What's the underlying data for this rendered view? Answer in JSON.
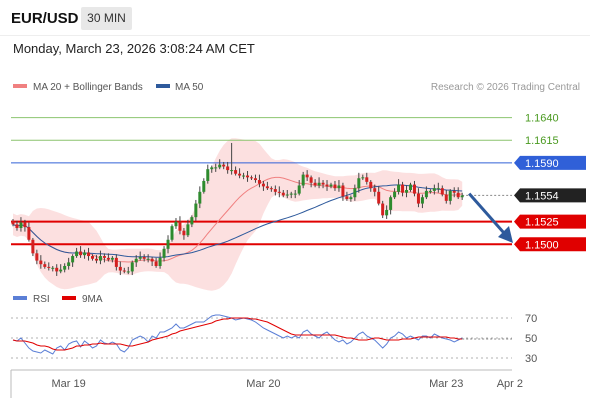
{
  "header": {
    "symbol": "EUR/USD",
    "timeframe": "30 MIN",
    "datetime": "Monday, March 23, 2026 3:08:24 AM CET"
  },
  "legend": {
    "ma20": {
      "label": "MA 20 + Bollinger Bands",
      "color": "#f08080"
    },
    "ma50": {
      "label": "MA 50",
      "color": "#2e5a9c"
    }
  },
  "copyright": "Research © 2026 Trading Central",
  "rsi_legend": {
    "rsi": {
      "label": "RSI",
      "color": "#5b7fd6"
    },
    "ma9": {
      "label": "9MA",
      "color": "#e00000"
    }
  },
  "colors": {
    "bull": "#2e8b2e",
    "bear": "#d42020",
    "resistance": "#8cc46f",
    "pivot": "#3060d8",
    "support": "#e00000",
    "band_fill": "#fbdada",
    "arrow": "#2e5a9c"
  },
  "chart_data": [
    {
      "type": "candlestick",
      "ylim": [
        1.1455,
        1.1665
      ],
      "x_ticks": [
        {
          "label": "Mar 19",
          "bar": 14
        },
        {
          "label": "Mar 20",
          "bar": 63
        },
        {
          "label": "Mar 23",
          "bar": 109
        },
        {
          "label": "Apr 2",
          "bar": 125
        }
      ],
      "levels": [
        {
          "label": "1.1640",
          "value": 1.164,
          "kind": "resistance"
        },
        {
          "label": "1.1615",
          "value": 1.1615,
          "kind": "resistance"
        },
        {
          "label": "1.1590",
          "value": 1.159,
          "kind": "pivot"
        },
        {
          "label": "1.1554",
          "value": 1.1554,
          "kind": "last"
        },
        {
          "label": "1.1525",
          "value": 1.1525,
          "kind": "support"
        },
        {
          "label": "1.1500",
          "value": 1.15,
          "kind": "support"
        }
      ],
      "close": [
        1.1522,
        1.1518,
        1.1524,
        1.1519,
        1.1505,
        1.149,
        1.1482,
        1.1478,
        1.1475,
        1.1474,
        1.1474,
        1.147,
        1.1472,
        1.1476,
        1.148,
        1.1487,
        1.1492,
        1.1488,
        1.1491,
        1.1487,
        1.1484,
        1.1482,
        1.1487,
        1.1485,
        1.1483,
        1.1485,
        1.1475,
        1.1471,
        1.147,
        1.147,
        1.148,
        1.1484,
        1.1486,
        1.1484,
        1.1484,
        1.1481,
        1.1476,
        1.1485,
        1.1495,
        1.1505,
        1.152,
        1.1525,
        1.1515,
        1.151,
        1.1522,
        1.153,
        1.1545,
        1.1558,
        1.157,
        1.1583,
        1.1585,
        1.1585,
        1.1588,
        1.1586,
        1.1582,
        1.1582,
        1.1578,
        1.1576,
        1.1576,
        1.1574,
        1.1573,
        1.1571,
        1.1567,
        1.1564,
        1.1562,
        1.1561,
        1.1558,
        1.1557,
        1.1554,
        1.1555,
        1.1556,
        1.1556,
        1.1565,
        1.1577,
        1.1574,
        1.1568,
        1.1565,
        1.1568,
        1.1566,
        1.1564,
        1.1566,
        1.1562,
        1.1565,
        1.1553,
        1.155,
        1.1552,
        1.1562,
        1.1573,
        1.1574,
        1.1569,
        1.1562,
        1.1558,
        1.1545,
        1.1532,
        1.1538,
        1.1552,
        1.1558,
        1.1566,
        1.1557,
        1.156,
        1.1566,
        1.1556,
        1.1545,
        1.1552,
        1.1559,
        1.1559,
        1.1562,
        1.1562,
        1.1555,
        1.1548,
        1.1559,
        1.1557,
        1.1552,
        1.1554
      ],
      "rsi_ylim": [
        20,
        80
      ],
      "rsi_ticks": [
        70,
        50,
        30
      ],
      "rsi": [
        48,
        47,
        50,
        45,
        40,
        37,
        36,
        35,
        38,
        36,
        34,
        40,
        42,
        38,
        44,
        46,
        47,
        41,
        47,
        44,
        40,
        42,
        48,
        45,
        44,
        46,
        44,
        38,
        36,
        40,
        48,
        50,
        52,
        50,
        46,
        52,
        50,
        56,
        56,
        58,
        60,
        64,
        60,
        60,
        62,
        64,
        66,
        66,
        66,
        69,
        72,
        73,
        73,
        72,
        71,
        70,
        68,
        69,
        70,
        69,
        68,
        66,
        63,
        60,
        58,
        56,
        54,
        52,
        50,
        52,
        50,
        52,
        50,
        56,
        58,
        54,
        52,
        50,
        54,
        56,
        52,
        48,
        46,
        48,
        44,
        46,
        50,
        54,
        56,
        52,
        50,
        48,
        44,
        40,
        44,
        50,
        52,
        56,
        54,
        50,
        52,
        50,
        48,
        52,
        52,
        50,
        54,
        52,
        50,
        49,
        48,
        46,
        48,
        50
      ],
      "rsi_ma9": [
        48,
        47,
        47,
        47,
        46,
        45,
        43,
        42,
        42,
        41,
        39,
        38,
        38,
        38,
        39,
        40,
        42,
        42,
        43,
        43,
        44,
        44,
        45,
        44,
        44,
        44,
        44,
        44,
        43,
        42,
        42,
        43,
        44,
        45,
        46,
        48,
        49,
        50,
        51,
        52,
        54,
        55,
        57,
        58,
        59,
        60,
        61,
        62,
        63,
        64,
        65,
        67,
        68,
        69,
        69,
        70,
        70,
        70,
        70,
        70,
        69,
        69,
        68,
        67,
        66,
        64,
        62,
        60,
        58,
        56,
        54,
        53,
        53,
        53,
        53,
        53,
        53,
        53,
        53,
        53,
        53,
        53,
        52,
        51,
        50,
        50,
        49,
        48,
        48,
        48,
        49,
        50,
        50,
        49,
        48,
        48,
        48,
        48,
        49,
        49,
        49,
        50,
        51,
        51,
        51,
        51,
        51,
        51,
        51,
        51,
        50,
        50,
        49,
        49
      ]
    }
  ]
}
